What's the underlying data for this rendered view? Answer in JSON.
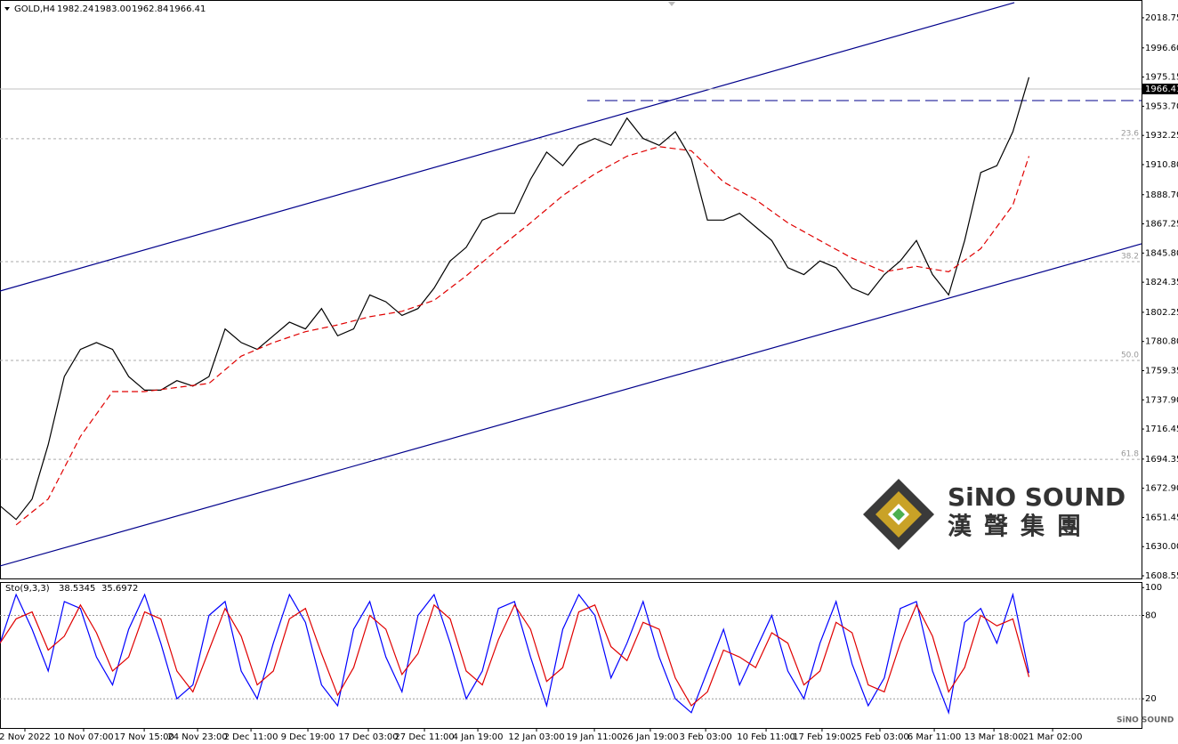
{
  "chart_data": [
    {
      "type": "line",
      "symbol": "GOLD,H4",
      "ohlc": {
        "open": 1982.24,
        "high": {
          "value": 1983,
          "label": "1983.00"
        },
        "low": 1962.84,
        "close": 1966.41
      },
      "current_price": 1966.41,
      "xlim": [
        0,
        71
      ],
      "xticks": [
        {
          "value": 1.55,
          "label": "2 Nov 2022"
        },
        {
          "value": 5.2,
          "label": "10 Nov 07:00"
        },
        {
          "value": 8.97,
          "label": "17 Nov 15:00"
        },
        {
          "value": 12.29,
          "label": "24 Nov 23:00"
        },
        {
          "value": 15.61,
          "label": "2 Dec 11:00"
        },
        {
          "value": 19.15,
          "label": "9 Dec 19:00"
        },
        {
          "value": 22.91,
          "label": "17 Dec 03:00"
        },
        {
          "value": 26.4,
          "label": "27 Dec 11:00"
        },
        {
          "value": 29.72,
          "label": "4 Jan 19:00"
        },
        {
          "value": 33.37,
          "label": "12 Jan 03:00"
        },
        {
          "value": 36.97,
          "label": "19 Jan 11:00"
        },
        {
          "value": 40.45,
          "label": "26 Jan 19:00"
        },
        {
          "value": 43.89,
          "label": "3 Feb 03:00"
        },
        {
          "value": 47.65,
          "label": "10 Feb 11:00"
        },
        {
          "value": 51.13,
          "label": "17 Feb 19:00"
        },
        {
          "value": 54.73,
          "label": "25 Feb 03:00"
        },
        {
          "value": 58.11,
          "label": "6 Mar 11:00"
        },
        {
          "value": 61.82,
          "label": "13 Mar 18:00"
        },
        {
          "value": 65.47,
          "label": "21 Mar 02:00"
        }
      ],
      "ylim": [
        1606.6,
        2031.8
      ],
      "yticks": [
        {
          "value": 2018.75,
          "label": "2018.75"
        },
        {
          "value": 1996.6,
          "label": "1996.60"
        },
        {
          "value": 1975.15,
          "label": "1975.15"
        },
        {
          "value": 1953.7,
          "label": "1953.70"
        },
        {
          "value": 1932.25,
          "label": "1932.25"
        },
        {
          "value": 1910.8,
          "label": "1910.80"
        },
        {
          "value": 1888.7,
          "label": "1888.70"
        },
        {
          "value": 1867.25,
          "label": "1867.25"
        },
        {
          "value": 1845.8,
          "label": "1845.80"
        },
        {
          "value": 1824.35,
          "label": "1824.35"
        },
        {
          "value": 1802.25,
          "label": "1802.25"
        },
        {
          "value": 1780.8,
          "label": "1780.80"
        },
        {
          "value": 1759.35,
          "label": "1759.35"
        },
        {
          "value": 1737.9,
          "label": "1737.90"
        },
        {
          "value": 1716.45,
          "label": "1716.45"
        },
        {
          "value": 1694.35,
          "label": "1694.35"
        },
        {
          "value": 1672.9,
          "label": "1672.90"
        },
        {
          "value": 1651.45,
          "label": "1651.45"
        },
        {
          "value": 1630,
          "label": "1630.00"
        },
        {
          "value": 1608.55,
          "label": "1608.55"
        }
      ],
      "series": [
        {
          "color": "#000000",
          "values": [
            1660,
            1650,
            1665,
            1705,
            1755,
            1775,
            1780,
            1775,
            1755,
            1745,
            1745,
            1752,
            1748,
            1755,
            1790,
            1780,
            1775,
            1785,
            1795,
            1790,
            1805,
            1785,
            1790,
            1815,
            1810,
            1800,
            1805,
            1820,
            1840,
            1850,
            1870,
            1875,
            1875,
            1900,
            1920,
            1910,
            1925,
            1930,
            1925,
            1945,
            1930,
            1925,
            1935,
            1915,
            1870,
            1870,
            1875,
            1865,
            1855,
            1835,
            1830,
            1840,
            1835,
            1820,
            1815,
            1830,
            1840,
            1855,
            1830,
            1815,
            1855,
            1905,
            1910,
            1935,
            1975
          ]
        },
        {
          "color": "#e00000",
          "x": [
            1,
            3,
            5,
            7,
            9,
            11,
            13,
            15,
            17,
            19,
            21,
            23,
            25,
            27,
            29,
            31,
            33,
            35,
            37,
            39,
            41,
            43,
            45,
            47,
            49,
            51,
            53,
            55,
            57,
            59,
            61,
            63,
            64
          ],
          "values": [
            1646,
            1665,
            1711,
            1744,
            1744,
            1747,
            1750,
            1770,
            1780,
            1788,
            1793,
            1799,
            1803,
            1811,
            1829,
            1849,
            1868,
            1888,
            1904,
            1917,
            1924,
            1921,
            1898,
            1885,
            1868,
            1855,
            1842,
            1832,
            1836,
            1832,
            1849,
            1881,
            1917
          ]
        }
      ],
      "channel": [
        {
          "color": "#00008b",
          "x": [
            0,
            63.09
          ],
          "values": [
            1817.9,
            2029.9
          ]
        },
        {
          "color": "#00008b",
          "x": [
            0,
            71
          ],
          "values": [
            1615.8,
            1852.6
          ]
        }
      ],
      "resistance": 1957.9,
      "fib_levels": [
        {
          "label": "23.6",
          "value": 1929.8
        },
        {
          "label": "38.2",
          "value": 1839.5
        },
        {
          "label": "50.0",
          "value": 1766.9
        },
        {
          "label": "61.8",
          "value": 1694.2
        }
      ]
    },
    {
      "type": "line",
      "title": "Sto(9,3,3)",
      "ylim": [
        -1,
        104
      ],
      "yticks": [
        20,
        80,
        100
      ],
      "series": [
        {
          "color": "#0000ff",
          "values": [
            60,
            95,
            70,
            40,
            90,
            85,
            50,
            30,
            70,
            95,
            60,
            20,
            30,
            80,
            90,
            40,
            20,
            60,
            95,
            75,
            30,
            15,
            70,
            90,
            50,
            25,
            80,
            95,
            60,
            20,
            40,
            85,
            90,
            50,
            15,
            70,
            95,
            80,
            35,
            60,
            90,
            50,
            20,
            10,
            40,
            70,
            30,
            55,
            80,
            40,
            20,
            60,
            90,
            45,
            15,
            35,
            85,
            90,
            40,
            10,
            75,
            85,
            60,
            95,
            38.5345
          ]
        },
        {
          "color": "#e00000",
          "values": [
            60,
            77.5,
            82.5,
            55,
            65,
            87.5,
            67.5,
            40,
            50,
            82.5,
            77.5,
            40,
            25,
            55,
            85,
            65,
            30,
            40,
            77.5,
            85,
            52.5,
            22.5,
            42.5,
            80,
            70,
            37.5,
            52.5,
            87.5,
            77.5,
            40,
            30,
            62.5,
            87.5,
            70,
            32.5,
            42.5,
            82.5,
            87.5,
            57.5,
            47.5,
            75,
            70,
            35,
            15,
            25,
            55,
            50,
            42.5,
            67.5,
            60,
            30,
            40,
            75,
            67.5,
            30,
            25,
            60,
            87.5,
            65,
            25,
            42.5,
            80,
            72.5,
            77.5,
            35.6972
          ]
        }
      ]
    }
  ],
  "logo": {
    "name": "SiNO SOUND",
    "chinese": "漢聲集團"
  }
}
